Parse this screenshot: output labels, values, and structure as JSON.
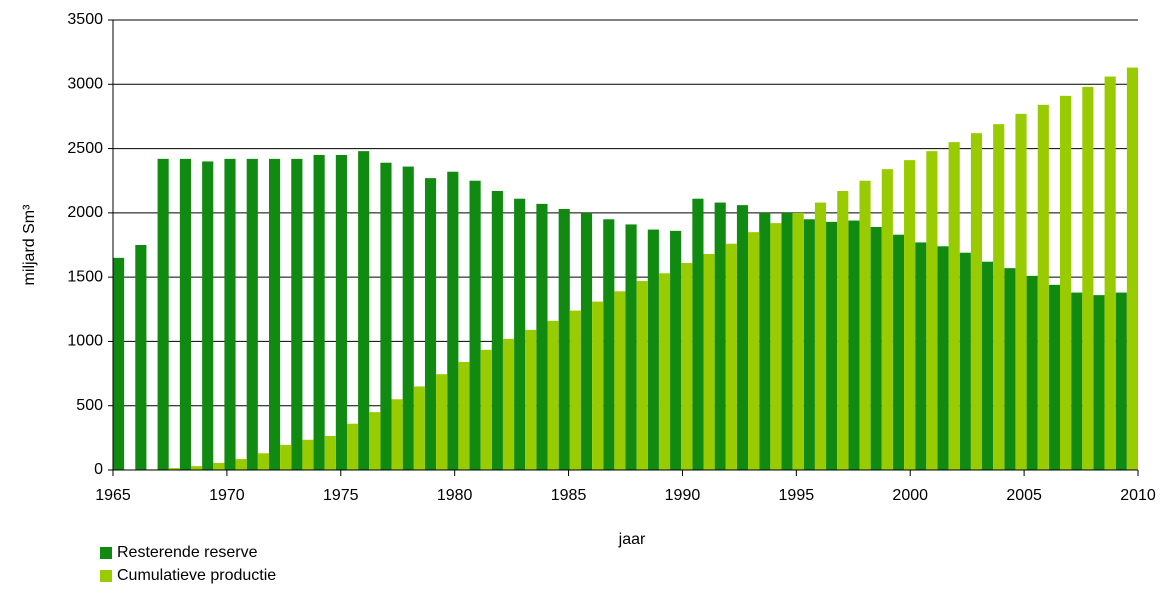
{
  "chart_data": {
    "type": "bar",
    "xlabel": "jaar",
    "ylabel": "miljard Sm³",
    "categories": [
      "1965",
      null,
      null,
      null,
      null,
      "1970",
      null,
      null,
      null,
      null,
      "1975",
      null,
      null,
      null,
      null,
      "1980",
      null,
      null,
      null,
      null,
      "1985",
      null,
      null,
      null,
      null,
      "1990",
      null,
      null,
      null,
      null,
      "1995",
      null,
      null,
      null,
      null,
      "2000",
      null,
      null,
      null,
      null,
      "2005",
      null,
      null,
      null,
      null,
      "2010"
    ],
    "series": [
      {
        "name": "Resterende reserve",
        "color": "#118a11",
        "values": [
          1650,
          1750,
          2420,
          2420,
          2400,
          2420,
          2420,
          2420,
          2420,
          2450,
          2450,
          2480,
          2390,
          2360,
          2270,
          2320,
          2250,
          2170,
          2110,
          2070,
          2030,
          2000,
          1950,
          1910,
          1870,
          1860,
          2110,
          2080,
          2060,
          2000,
          2000,
          1950,
          1930,
          1940,
          1890,
          1830,
          1770,
          1740,
          1690,
          1620,
          1570,
          1510,
          1440,
          1380,
          1360,
          1380
        ]
      },
      {
        "name": "Cumulatieve productie",
        "color": "#99cc00",
        "values": [
          0,
          5,
          15,
          30,
          55,
          85,
          130,
          195,
          235,
          265,
          360,
          450,
          550,
          650,
          745,
          840,
          935,
          1020,
          1090,
          1160,
          1240,
          1310,
          1390,
          1470,
          1530,
          1610,
          1680,
          1760,
          1850,
          1920,
          2000,
          2080,
          2170,
          2250,
          2340,
          2410,
          2480,
          2550,
          2620,
          2690,
          2770,
          2840,
          2910,
          2980,
          3060,
          3130
        ]
      }
    ],
    "ylim": [
      0,
      3500
    ],
    "yticks": [
      0,
      500,
      1000,
      1500,
      2000,
      2500,
      3000,
      3500
    ],
    "grid": true
  }
}
